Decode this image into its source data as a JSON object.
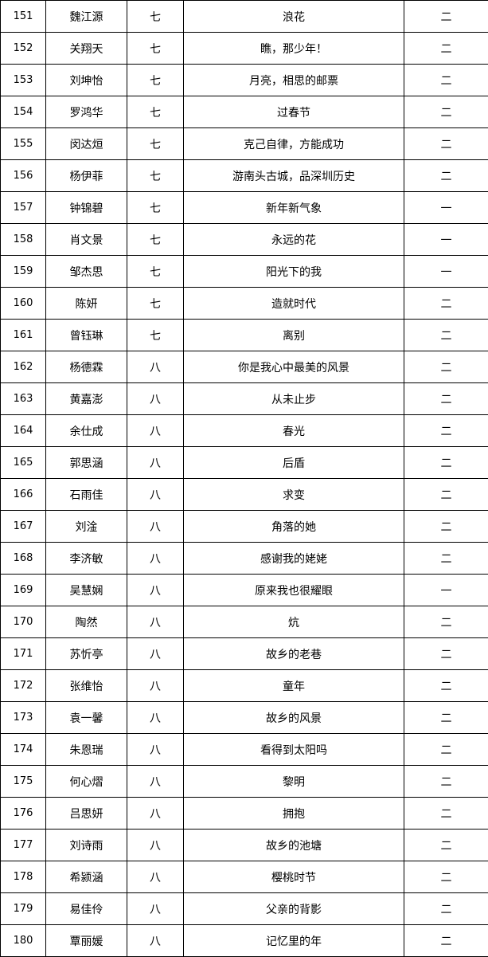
{
  "table": {
    "rows": [
      [
        "151",
        "魏江源",
        "七",
        "浪花",
        "二"
      ],
      [
        "152",
        "关翔天",
        "七",
        "瞧，那少年！",
        "二"
      ],
      [
        "153",
        "刘坤怡",
        "七",
        "月亮，相思的邮票",
        "二"
      ],
      [
        "154",
        "罗鸿华",
        "七",
        "过春节",
        "二"
      ],
      [
        "155",
        "闵达烜",
        "七",
        "克己自律，方能成功",
        "二"
      ],
      [
        "156",
        "杨伊菲",
        "七",
        "游南头古城，品深圳历史",
        "二"
      ],
      [
        "157",
        "钟锦碧",
        "七",
        "新年新气象",
        "一"
      ],
      [
        "158",
        "肖文景",
        "七",
        "永远的花",
        "一"
      ],
      [
        "159",
        "邹杰思",
        "七",
        "阳光下的我",
        "一"
      ],
      [
        "160",
        "陈妍",
        "七",
        "造就时代",
        "二"
      ],
      [
        "161",
        "曾钰琳",
        "七",
        "离别",
        "二"
      ],
      [
        "162",
        "杨德霖",
        "八",
        "你是我心中最美的风景",
        "二"
      ],
      [
        "163",
        "黄嘉澎",
        "八",
        "从未止步",
        "二"
      ],
      [
        "164",
        "余仕成",
        "八",
        "春光",
        "二"
      ],
      [
        "165",
        "郭思涵",
        "八",
        "后盾",
        "二"
      ],
      [
        "166",
        "石雨佳",
        "八",
        "求变",
        "二"
      ],
      [
        "167",
        "刘淦",
        "八",
        "角落的她",
        "二"
      ],
      [
        "168",
        "李济敏",
        "八",
        "感谢我的姥姥",
        "二"
      ],
      [
        "169",
        "吴慧娴",
        "八",
        "原来我也很耀眼",
        "一"
      ],
      [
        "170",
        "陶然",
        "八",
        "炕",
        "二"
      ],
      [
        "171",
        "苏忻亭",
        "八",
        "故乡的老巷",
        "二"
      ],
      [
        "172",
        "张维怡",
        "八",
        "童年",
        "二"
      ],
      [
        "173",
        "袁一馨",
        "八",
        "故乡的风景",
        "二"
      ],
      [
        "174",
        "朱恩瑞",
        "八",
        "看得到太阳吗",
        "二"
      ],
      [
        "175",
        "何心熠",
        "八",
        "黎明",
        "二"
      ],
      [
        "176",
        "吕思妍",
        "八",
        "拥抱",
        "二"
      ],
      [
        "177",
        "刘诗雨",
        "八",
        "故乡的池塘",
        "二"
      ],
      [
        "178",
        "希颍涵",
        "八",
        "樱桃时节",
        "二"
      ],
      [
        "179",
        "易佳伶",
        "八",
        "父亲的背影",
        "二"
      ],
      [
        "180",
        "覃丽媛",
        "八",
        "记忆里的年",
        "二"
      ]
    ]
  }
}
